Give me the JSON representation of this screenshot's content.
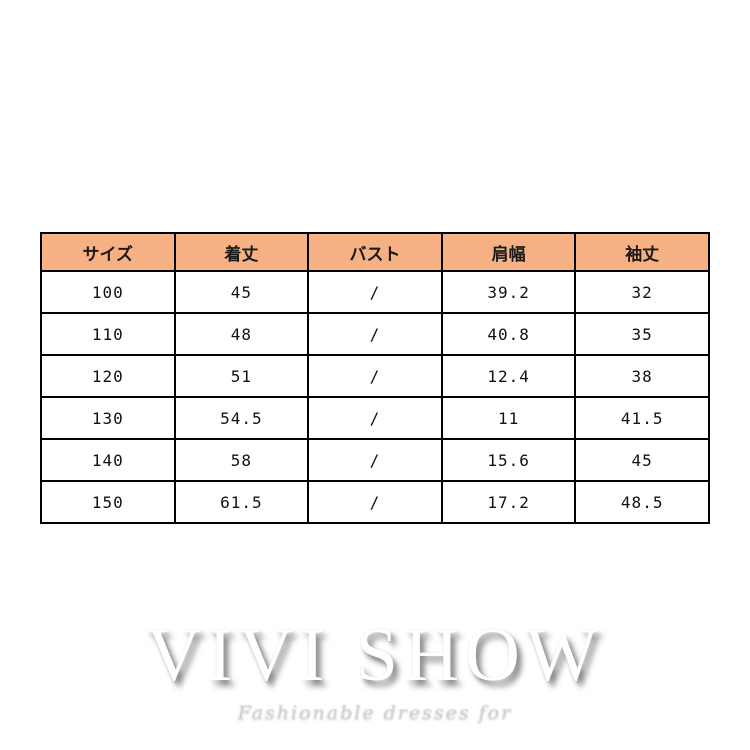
{
  "chart_data": {
    "type": "table",
    "title": "",
    "columns": [
      "サイズ",
      "着丈",
      "バスト",
      "肩幅",
      "袖丈"
    ],
    "rows": [
      [
        "100",
        "45",
        "/",
        "39.2",
        "32"
      ],
      [
        "110",
        "48",
        "/",
        "40.8",
        "35"
      ],
      [
        "120",
        "51",
        "/",
        "12.4",
        "38"
      ],
      [
        "130",
        "54.5",
        "/",
        "11",
        "41.5"
      ],
      [
        "140",
        "58",
        "/",
        "15.6",
        "45"
      ],
      [
        "150",
        "61.5",
        "/",
        "17.2",
        "48.5"
      ]
    ]
  },
  "table_style": {
    "header_bg": "#f5b183",
    "border_color": "#000000"
  },
  "logo": {
    "brand": "VIVI SHOW",
    "tagline": "Fashionable dresses for"
  }
}
